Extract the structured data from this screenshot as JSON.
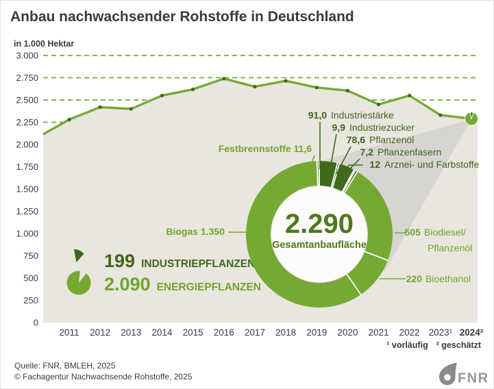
{
  "title": "Anbau nachwachsender Rohstoffe in Deutschland",
  "y_axis_unit": "in 1.000 Hektar",
  "footnotes": {
    "f1": "¹ vorläufig",
    "f2": "² geschätzt"
  },
  "source": {
    "line1": "Quelle: FNR, BMLEH, 2025",
    "line2": "© Fachagentur Nachwachsende Rohstoffe, 2025"
  },
  "logo": {
    "text": "FNR"
  },
  "legend": {
    "industrie": {
      "value": "199",
      "label": "INDUSTRIEPFLANZEN"
    },
    "energie": {
      "value": "2.090",
      "label": "ENERGIEPFLANZEN"
    }
  },
  "colors": {
    "light_green": "#76a934",
    "dark_green": "#40691c",
    "text_light_green": "#70a52c",
    "text_dark_green": "#3f661c",
    "area_beige": "#e9e6df",
    "fan_gray": "#d7d5d1",
    "text_dark": "#3a3a39",
    "logo_gray": "#8a8a8d"
  },
  "chart_data": [
    {
      "type": "line",
      "title": "Anbau nachwachsender Rohstoffe in Deutschland",
      "ylabel": "in 1.000 Hektar",
      "ylim": [
        0,
        3000
      ],
      "grid": "dashed-green",
      "y_tick_values": [
        3000,
        2750,
        2500,
        2250,
        2000,
        1750,
        1500,
        1250,
        1000,
        750,
        500,
        250,
        0
      ],
      "y_tick_labels": [
        "3.000",
        "2.750",
        "2.500",
        "2.250",
        "2.000",
        "1.750",
        "1.500",
        "1.250",
        "1.000",
        "750",
        "500",
        "250",
        "0"
      ],
      "categories": [
        "2011",
        "2012",
        "2013",
        "2014",
        "2015",
        "2016",
        "2017",
        "2018",
        "2019",
        "2020",
        "2021",
        "2022",
        "2023¹",
        "2024²"
      ],
      "values": [
        2280,
        2420,
        2400,
        2550,
        2620,
        2740,
        2650,
        2715,
        2640,
        2605,
        2450,
        2550,
        2330,
        2290
      ],
      "lead_in_value": 2115
    },
    {
      "type": "pie",
      "total": "2.290",
      "total_label": "Gesamtanbaufläche",
      "segments": [
        {
          "id": "industriestaerke",
          "value": 91.0,
          "display": "91,0",
          "label": "Industriestärke",
          "group": "industrie"
        },
        {
          "id": "industriezucker",
          "value": 9.9,
          "display": "9,9",
          "label": "Industriezucker",
          "group": "industrie"
        },
        {
          "id": "pflanzenoel",
          "value": 78.6,
          "display": "78,6",
          "label": "Pflanzenöl",
          "group": "industrie"
        },
        {
          "id": "pflanzenfasern",
          "value": 7.2,
          "display": "7,2",
          "label": "Pflanzenfasern",
          "group": "industrie"
        },
        {
          "id": "arznei",
          "value": 12,
          "display": "12",
          "label": "Arznei- und Farbstoffe",
          "group": "industrie"
        },
        {
          "id": "biodiesel",
          "value": 505,
          "display": "505",
          "label": "Biodiesel/Pflanzenöl",
          "label_lines": [
            "Biodiesel/",
            "Pflanzenöl"
          ],
          "group": "energie"
        },
        {
          "id": "bioethanol",
          "value": 220,
          "display": "220",
          "label": "Bioethanol",
          "group": "energie"
        },
        {
          "id": "biogas",
          "value": 1350,
          "display": "1.350",
          "label": "Biogas",
          "group": "energie"
        },
        {
          "id": "festbrennstoffe",
          "value": 11.6,
          "display": "11,6",
          "label": "Festbrennstoffe",
          "group": "energie"
        }
      ]
    }
  ]
}
